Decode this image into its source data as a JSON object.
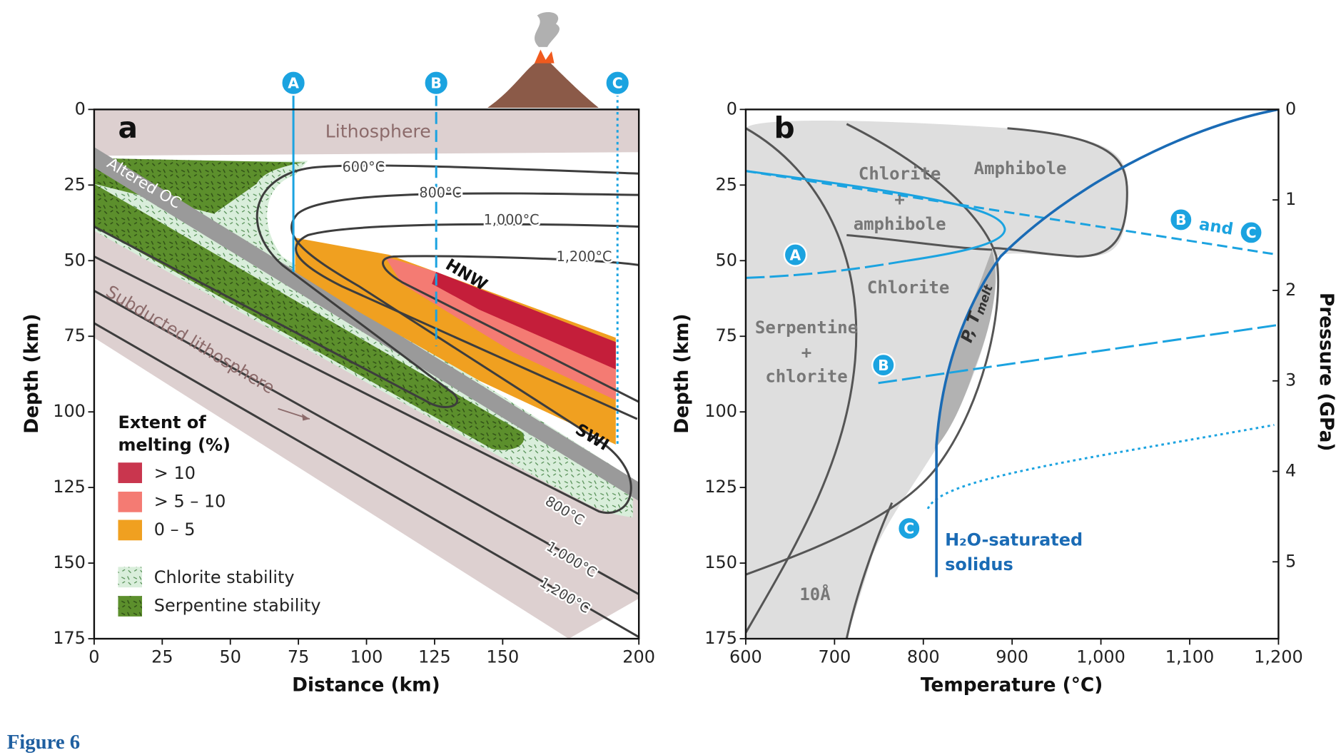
{
  "figure_label": "Figure 6",
  "panel_a": {
    "letter": "a",
    "x_axis": {
      "label": "Distance (km)",
      "lim": [
        0,
        200
      ],
      "ticks": [
        0,
        25,
        50,
        75,
        100,
        125,
        150,
        200
      ]
    },
    "y_axis": {
      "label": "Depth (km)",
      "lim": [
        175,
        0
      ],
      "ticks": [
        0,
        25,
        50,
        75,
        100,
        125,
        150,
        175
      ]
    },
    "profiles": [
      "A",
      "B",
      "C"
    ],
    "region_labels": [
      "Lithosphere",
      "Altered OC",
      "Subducted lithosphere"
    ],
    "isotherms": [
      "600°C",
      "800°C",
      "1,000°C",
      "1,200°C"
    ],
    "zone_labels": [
      "HNW",
      "SWI"
    ],
    "legend": {
      "title": [
        "Extent of",
        "melting (%)"
      ],
      "melting": [
        "> 10",
        "> 5 – 10",
        "0 – 5"
      ],
      "stability": [
        "Chlorite stability",
        "Serpentine stability"
      ]
    }
  },
  "panel_b": {
    "letter": "b",
    "x_axis": {
      "label": "Temperature (°C)",
      "lim": [
        600,
        1200
      ],
      "ticks": [
        600,
        700,
        800,
        900,
        {
          "value": 1000,
          "label": "1,000"
        },
        {
          "value": 1100,
          "label": "1,100"
        },
        {
          "value": 1200,
          "label": "1,200"
        }
      ]
    },
    "y_axis": {
      "label": "Depth (km)",
      "lim": [
        175,
        0
      ],
      "ticks": [
        0,
        25,
        50,
        75,
        100,
        125,
        150,
        175
      ]
    },
    "y2_axis": {
      "label": "Pressure (GPa)",
      "lim": [
        5.85,
        0
      ],
      "ticks": [
        0,
        1,
        2,
        3,
        4,
        5
      ]
    },
    "field_labels": [
      "Chlorite",
      "+",
      "amphibole",
      "Amphibole",
      "Chlorite",
      "Serpentine",
      "+",
      "chlorite",
      "10Å"
    ],
    "melt_label": [
      "P, T",
      "melt"
    ],
    "path_labels": [
      "and"
    ],
    "solidus_label": [
      "H₂O-saturated",
      "solidus"
    ]
  }
}
